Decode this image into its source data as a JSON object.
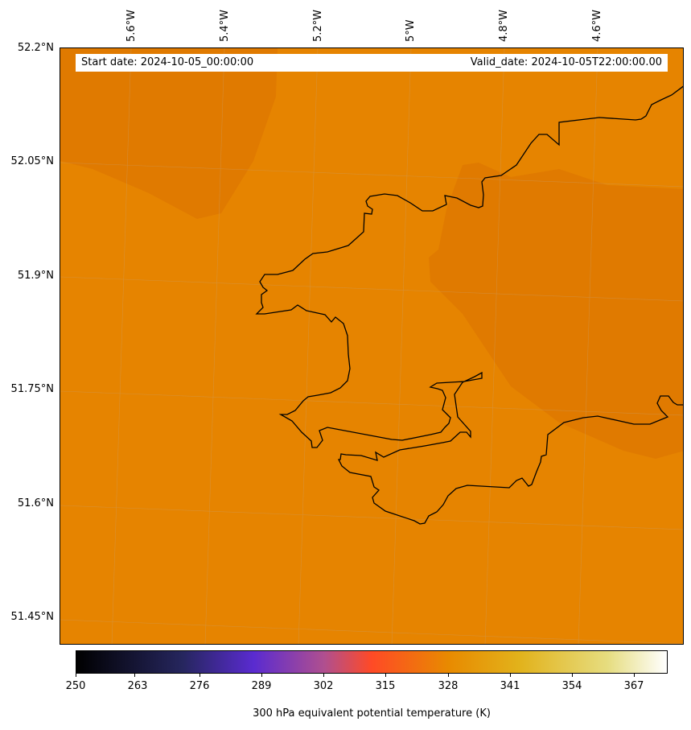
{
  "map": {
    "start_date": "Start date: 2024-10-05_00:00:00",
    "valid_date": "Valid_date: 2024-10-05T22:00:00.00",
    "fill_color": "#e68400",
    "warm_patch_color": "#e07a00",
    "coastline_color": "#000000",
    "grid_color": "#c8c8c8"
  },
  "axes": {
    "longitude_labels": [
      "5.6°W",
      "5.4°W",
      "5.2°W",
      "5°W",
      "4.8°W",
      "4.6°W"
    ],
    "latitude_labels": [
      "52.2°N",
      "52.05°N",
      "51.9°N",
      "51.75°N",
      "51.6°N",
      "51.45°N"
    ]
  },
  "colorbar": {
    "title": "300 hPa equivalent potential temperature (K)",
    "tick_labels": [
      "250",
      "263",
      "276",
      "289",
      "302",
      "315",
      "328",
      "341",
      "354",
      "367"
    ],
    "range": [
      250,
      380
    ],
    "colormap": "CMRmap"
  }
}
